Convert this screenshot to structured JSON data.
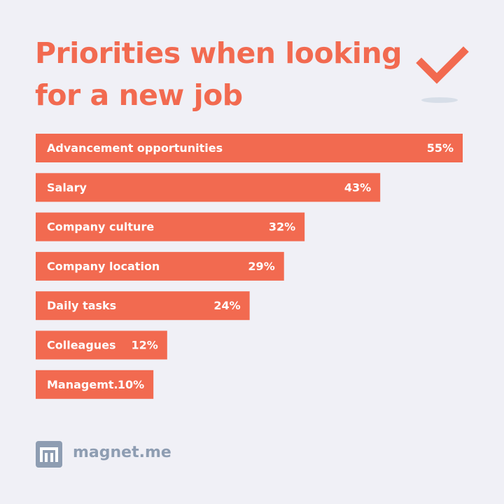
{
  "chart_data": {
    "type": "bar",
    "orientation": "horizontal",
    "title": "Priorities when looking for a new job",
    "categories": [
      "Advancement opportunities",
      "Salary",
      "Company culture",
      "Company location",
      "Daily tasks",
      "Colleagues",
      "Managemt."
    ],
    "values": [
      55,
      43,
      32,
      29,
      24,
      12,
      10
    ],
    "value_labels": [
      "55%",
      "43%",
      "32%",
      "29%",
      "24%",
      "12%",
      "10%"
    ],
    "color": "#f26a50"
  },
  "footer": {
    "brand": "magnet.me"
  }
}
